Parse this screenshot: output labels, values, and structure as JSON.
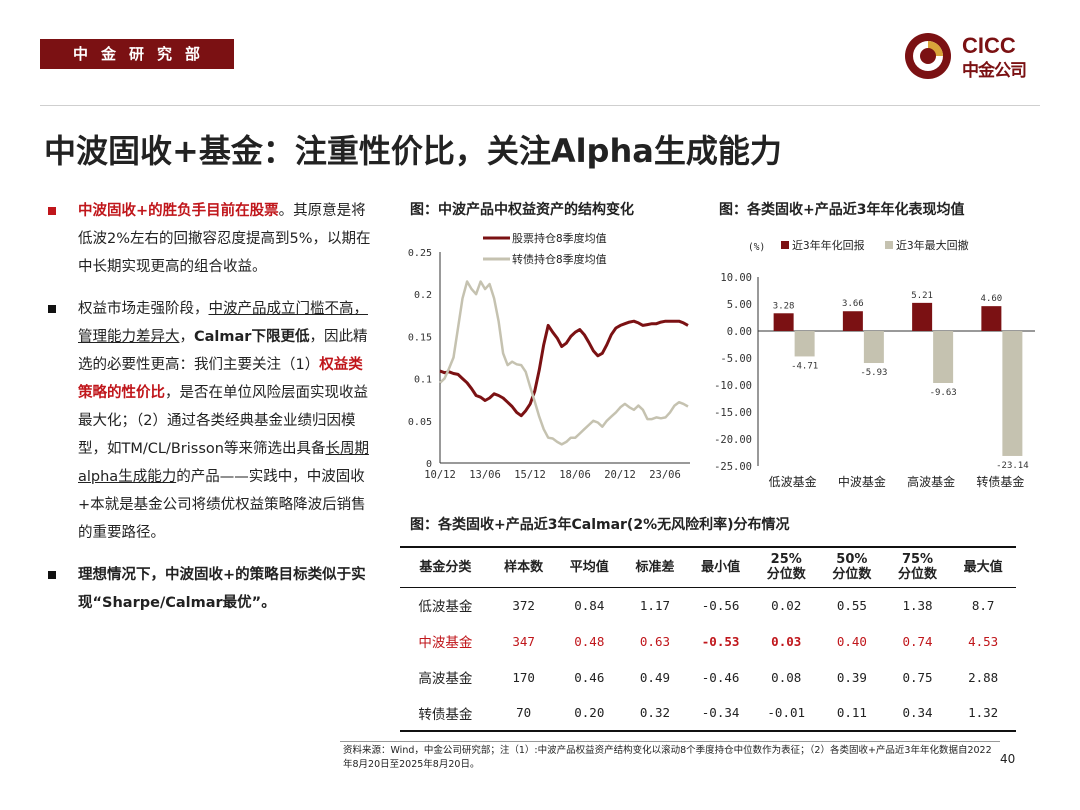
{
  "header": {
    "department": "中金研究部",
    "logo_en": "CICC",
    "logo_cn": "中金公司",
    "brand_color": "#7b1113"
  },
  "title": "中波固收+基金：注重性价比，关注Alpha生成能力",
  "bullets": {
    "b1": {
      "red": "中波固收+的胜负手目前在股票",
      "rest": "。其原意是将低波2%左右的回撤容忍度提高到5%，以期在中长期实现更高的组合收益。"
    },
    "b2": {
      "p1": "权益市场走强阶段，",
      "u1": "中波产品成立门槛不高，管理能力差异大",
      "p2": "，",
      "b1": "Calmar下限更低",
      "p3": "，因此精选的必要性更高：我们主要关注（1）",
      "red1": "权益类策略的性价比",
      "p4": "，是否在单位风险层面实现收益最大化；（2）通过各类经典基金业绩归因模型，如TM/CL/Brisson等来筛选出具备",
      "u2": "长周期alpha生成能力",
      "p5": "的产品——实践中，中波固收+本就是基金公司将绩优权益策略降波后销售的重要路径。"
    },
    "b3": "理想情况下，中波固收+的策略目标类似于实现“Sharpe/Calmar最优”。"
  },
  "chart_data": [
    {
      "type": "line",
      "title": "图：中波产品中权益资产的结构变化",
      "x_ticks": [
        "10/12",
        "13/06",
        "15/12",
        "18/06",
        "20/12",
        "23/06"
      ],
      "ylim": [
        0,
        0.25
      ],
      "y_ticks": [
        "0",
        "0.05",
        "0.1",
        "0.15",
        "0.2",
        "0.25"
      ],
      "legend_position": "top",
      "grid": false,
      "series": [
        {
          "name": "股票持仓8季度均值",
          "color": "#7b1113",
          "values": [
            0.109,
            0.107,
            0.108,
            0.106,
            0.105,
            0.1,
            0.095,
            0.088,
            0.08,
            0.078,
            0.074,
            0.077,
            0.082,
            0.08,
            0.077,
            0.072,
            0.067,
            0.06,
            0.056,
            0.062,
            0.07,
            0.085,
            0.11,
            0.14,
            0.163,
            0.155,
            0.148,
            0.138,
            0.142,
            0.15,
            0.155,
            0.158,
            0.152,
            0.143,
            0.133,
            0.127,
            0.13,
            0.14,
            0.152,
            0.16,
            0.163,
            0.165,
            0.167,
            0.168,
            0.166,
            0.163,
            0.164,
            0.165,
            0.165,
            0.167,
            0.168,
            0.168,
            0.168,
            0.168,
            0.166,
            0.163
          ]
        },
        {
          "name": "转债持仓8季度均值",
          "color": "#c5c2b0",
          "values": [
            0.095,
            0.1,
            0.112,
            0.125,
            0.16,
            0.195,
            0.215,
            0.206,
            0.2,
            0.215,
            0.206,
            0.212,
            0.195,
            0.168,
            0.13,
            0.116,
            0.12,
            0.117,
            0.116,
            0.108,
            0.09,
            0.073,
            0.055,
            0.04,
            0.03,
            0.029,
            0.025,
            0.022,
            0.025,
            0.03,
            0.03,
            0.035,
            0.04,
            0.045,
            0.05,
            0.048,
            0.043,
            0.05,
            0.055,
            0.06,
            0.066,
            0.07,
            0.066,
            0.063,
            0.068,
            0.063,
            0.052,
            0.052,
            0.054,
            0.053,
            0.054,
            0.06,
            0.068,
            0.072,
            0.07,
            0.067
          ]
        }
      ]
    },
    {
      "type": "bar",
      "title": "图：各类固收+产品近3年年化表现均值",
      "unit_label": "(%)",
      "categories": [
        "低波基金",
        "中波基金",
        "高波基金",
        "转债基金"
      ],
      "ylim": [
        -25,
        10
      ],
      "y_ticks": [
        "10.00",
        "5.00",
        "0.00",
        "-5.00",
        "-10.00",
        "-15.00",
        "-20.00",
        "-25.00"
      ],
      "legend_position": "top",
      "grid": false,
      "series": [
        {
          "name": "近3年年化回报",
          "color": "#7b1113",
          "values": [
            3.28,
            3.66,
            5.21,
            4.6
          ],
          "labels": [
            "3.28",
            "3.66",
            "5.21",
            "4.60"
          ]
        },
        {
          "name": "近3年最大回撤",
          "color": "#c5c2b0",
          "values": [
            -4.71,
            -5.93,
            -9.63,
            -23.14
          ],
          "labels": [
            "-4.71",
            "-5.93",
            "-9.63",
            "-23.14"
          ]
        }
      ]
    }
  ],
  "table": {
    "title": "图：各类固收+产品近3年Calmar(2%无风险利率)分布情况",
    "headers": [
      "基金分类",
      "样本数",
      "平均值",
      "标准差",
      "最小值",
      "25%\n分位数",
      "50%\n分位数",
      "75%\n分位数",
      "最大值"
    ],
    "rows": [
      [
        "低波基金",
        "372",
        "0.84",
        "1.17",
        "-0.56",
        "0.02",
        "0.55",
        "1.38",
        "8.7"
      ],
      [
        "中波基金",
        "347",
        "0.48",
        "0.63",
        "-0.53",
        "0.03",
        "0.40",
        "0.74",
        "4.53"
      ],
      [
        "高波基金",
        "170",
        "0.46",
        "0.49",
        "-0.46",
        "0.08",
        "0.39",
        "0.75",
        "2.88"
      ],
      [
        "转债基金",
        "70",
        "0.20",
        "0.32",
        "-0.34",
        "-0.01",
        "0.11",
        "0.34",
        "1.32"
      ]
    ],
    "highlight_color": "#c0161b"
  },
  "footer": {
    "source": "资料来源：Wind，中金公司研究部；注（1）:中波产品权益资产结构变化以滚动8个季度持仓中位数作为表征；（2）各类固收+产品近3年年化数据自2022年8月20日至2025年8月20日。",
    "page": "40"
  }
}
